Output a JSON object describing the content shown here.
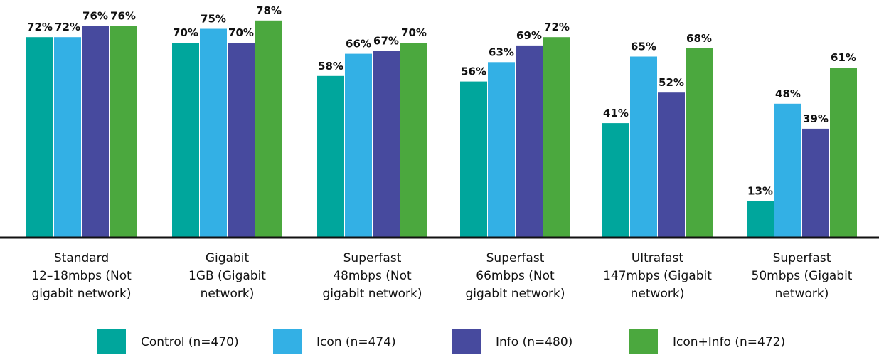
{
  "chart_data": {
    "type": "bar",
    "categories": [
      [
        "Standard",
        "12–18mbps (Not",
        "gigabit network)"
      ],
      [
        "Gigabit",
        "1GB (Gigabit",
        "network)"
      ],
      [
        "Superfast",
        "48mbps (Not",
        "gigabit network)"
      ],
      [
        "Superfast",
        "66mbps (Not",
        "gigabit network)"
      ],
      [
        "Ultrafast",
        "147mbps (Gigabit",
        "network)"
      ],
      [
        "Superfast",
        "50mbps (Gigabit",
        "network)"
      ]
    ],
    "series": [
      {
        "name": "Control (n=470)",
        "color": "#00a69c",
        "values": [
          72,
          70,
          58,
          56,
          41,
          13
        ]
      },
      {
        "name": "Icon (n=474)",
        "color": "#33b0e5",
        "values": [
          72,
          75,
          66,
          63,
          65,
          48
        ]
      },
      {
        "name": "Info (n=480)",
        "color": "#474a9e",
        "values": [
          76,
          70,
          67,
          69,
          52,
          39
        ]
      },
      {
        "name": "Icon+Info (n=472)",
        "color": "#4ba83e",
        "values": [
          76,
          78,
          70,
          72,
          68,
          61
        ]
      }
    ],
    "value_suffix": "%",
    "ylim": [
      0,
      100
    ],
    "grid": false,
    "legend_position": "bottom"
  }
}
